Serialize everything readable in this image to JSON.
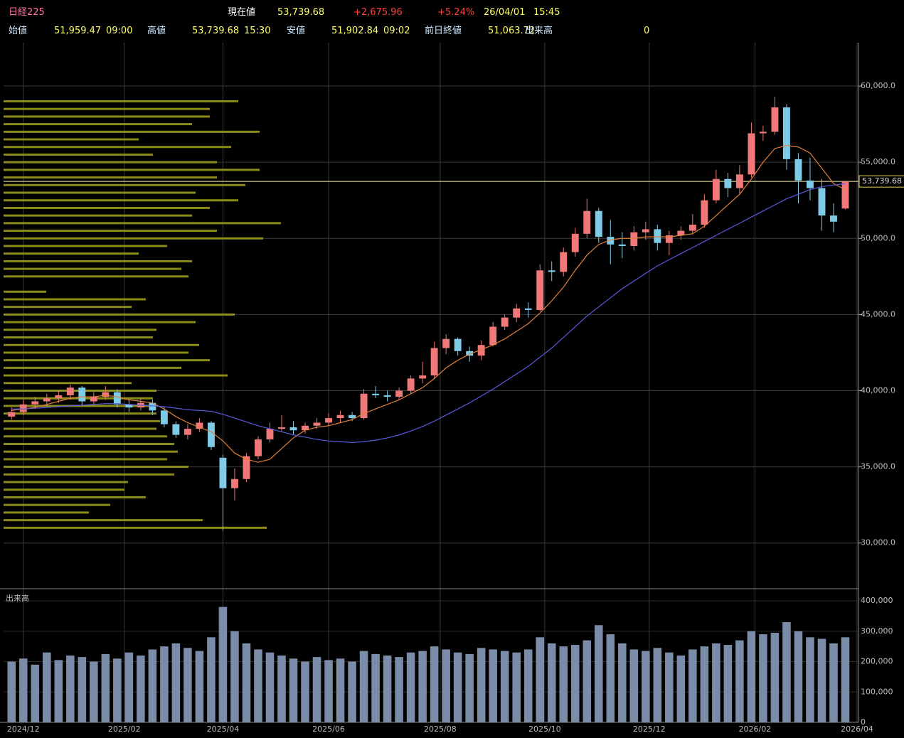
{
  "header": {
    "name": "日経225",
    "current_label": "現在値",
    "current": "53,739.68",
    "change": "+2,675.96",
    "change_pct": "+5.24%",
    "date": "26/04/01",
    "time": "15:45",
    "open_label": "始値",
    "open": "51,959.47",
    "open_time": "09:00",
    "high_label": "高値",
    "high": "53,739.68",
    "high_time": "15:30",
    "low_label": "安値",
    "low": "51,902.84",
    "low_time": "09:02",
    "prev_label": "前日終値",
    "prev": "51,063.72",
    "volume_label": "出来高",
    "volume": "0"
  },
  "chart_data": [
    {
      "type": "candlestick",
      "up_color": "#f07878",
      "down_color": "#7ecbe8",
      "grid": true,
      "xlim": [
        -0.5,
        72
      ],
      "ylim": [
        27000,
        62850
      ],
      "yticks": [
        {
          "value": 30000,
          "label": "30,000.0"
        },
        {
          "value": 35000,
          "label": "35,000.0"
        },
        {
          "value": 40000,
          "label": "40,000.0"
        },
        {
          "value": 45000,
          "label": "45,000.0"
        },
        {
          "value": 50000,
          "label": "50,000.0"
        },
        {
          "value": 55000,
          "label": "55,000.0"
        },
        {
          "value": 60000,
          "label": "60,000.0"
        }
      ],
      "last_price": 53739.68,
      "last_price_label": "53,739.68",
      "open": [
        38300,
        38600,
        39100,
        39300,
        39500,
        39700,
        40200,
        39300,
        39600,
        39900,
        39100,
        38900,
        39200,
        38700,
        37800,
        37100,
        37500,
        37900,
        35600,
        33600,
        34200,
        35700,
        36800,
        37500,
        37600,
        37400,
        37700,
        37900,
        38200,
        38400,
        38200,
        39800,
        39700,
        39600,
        40000,
        40800,
        41000,
        42800,
        43400,
        42600,
        42300,
        43000,
        44200,
        44800,
        45400,
        45300,
        47900,
        47800,
        49100,
        50300,
        51800,
        50100,
        49600,
        49500,
        50400,
        50600,
        49700,
        50200,
        50500,
        50900,
        52500,
        53900,
        53300,
        54200,
        56900,
        57000,
        58600,
        55200,
        53800,
        53300,
        51500,
        51960
      ],
      "high": [
        38900,
        39400,
        39600,
        39800,
        40000,
        40400,
        40300,
        39900,
        40300,
        40100,
        39400,
        39500,
        39400,
        38900,
        38000,
        37800,
        38200,
        38000,
        35800,
        34900,
        35900,
        37000,
        37900,
        38400,
        38000,
        37900,
        38200,
        38500,
        38700,
        38600,
        40100,
        40300,
        40000,
        40200,
        41000,
        41900,
        43200,
        43700,
        43500,
        42900,
        43300,
        44500,
        45000,
        45700,
        45800,
        48300,
        48500,
        49400,
        50700,
        52600,
        52000,
        51200,
        50400,
        50800,
        51100,
        50900,
        50500,
        50800,
        51600,
        52900,
        54500,
        54300,
        54800,
        57600,
        57400,
        59300,
        58800,
        55600,
        55300,
        53900,
        52300,
        53740
      ],
      "low": [
        38100,
        38400,
        38800,
        39000,
        39200,
        39400,
        39000,
        39100,
        39400,
        38900,
        38600,
        38700,
        38400,
        37600,
        36900,
        36800,
        37300,
        36100,
        30800,
        32800,
        34000,
        35500,
        36600,
        37300,
        37100,
        37200,
        37500,
        37700,
        37900,
        38000,
        38100,
        39500,
        39300,
        39400,
        39800,
        40500,
        40800,
        42400,
        42300,
        41900,
        42000,
        42900,
        44000,
        44500,
        44800,
        45200,
        47200,
        47500,
        48800,
        50000,
        49700,
        48300,
        48700,
        49200,
        49900,
        49200,
        48900,
        49900,
        50300,
        50700,
        52300,
        52700,
        52900,
        54000,
        56400,
        56800,
        54500,
        52300,
        52500,
        50500,
        50400,
        51900
      ],
      "close": [
        38600,
        39100,
        39300,
        39500,
        39700,
        40200,
        39300,
        39600,
        39900,
        39100,
        38900,
        39200,
        38700,
        37800,
        37100,
        37500,
        37900,
        36300,
        33600,
        34200,
        35700,
        36800,
        37500,
        37600,
        37400,
        37700,
        37900,
        38200,
        38400,
        38200,
        39800,
        39700,
        39600,
        40000,
        40800,
        41000,
        42800,
        43400,
        42600,
        42300,
        43000,
        44200,
        44800,
        45400,
        45300,
        47900,
        47800,
        49100,
        50300,
        51800,
        50100,
        49600,
        49500,
        50400,
        50600,
        49700,
        50200,
        50500,
        50900,
        52500,
        53900,
        53300,
        54200,
        56900,
        57000,
        58600,
        55200,
        53800,
        53300,
        51500,
        51100,
        53740
      ],
      "lines": [
        {
          "color": "#e0803a",
          "values": [
            38700,
            38800,
            38900,
            39100,
            39300,
            39500,
            39600,
            39600,
            39700,
            39600,
            39400,
            39300,
            39200,
            38800,
            38300,
            37900,
            37600,
            37300,
            36700,
            35900,
            35500,
            35300,
            35500,
            36200,
            36900,
            37400,
            37600,
            37700,
            37900,
            38100,
            38500,
            38800,
            39100,
            39400,
            39800,
            40200,
            40800,
            41500,
            42000,
            42400,
            42700,
            43000,
            43400,
            43900,
            44400,
            45100,
            45900,
            46800,
            47900,
            48900,
            49600,
            49900,
            50000,
            50000,
            50100,
            50100,
            50100,
            50200,
            50300,
            50800,
            51500,
            52200,
            52900,
            53900,
            55000,
            55900,
            56100,
            56000,
            55600,
            54600,
            53600,
            53200
          ]
        },
        {
          "color": "#5a5ae0",
          "values": [
            38800,
            38800,
            38850,
            38900,
            38950,
            39000,
            39050,
            39100,
            39150,
            39150,
            39100,
            39050,
            39000,
            38950,
            38850,
            38750,
            38700,
            38650,
            38450,
            38200,
            37950,
            37700,
            37500,
            37300,
            37100,
            36950,
            36800,
            36700,
            36650,
            36600,
            36650,
            36750,
            36900,
            37100,
            37350,
            37650,
            38000,
            38400,
            38800,
            39200,
            39650,
            40100,
            40600,
            41100,
            41600,
            42200,
            42800,
            43500,
            44200,
            44900,
            45500,
            46100,
            46700,
            47200,
            47700,
            48200,
            48600,
            49000,
            49400,
            49800,
            50200,
            50600,
            51000,
            51400,
            51800,
            52200,
            52600,
            52900,
            53200,
            53400,
            53500,
            53600
          ]
        }
      ],
      "volume_profile": {
        "color": "#a3a31c",
        "prices": [
          31000,
          31500,
          32000,
          32500,
          33000,
          33500,
          34000,
          34500,
          35000,
          35500,
          36000,
          36500,
          37000,
          37500,
          38000,
          38500,
          39000,
          39500,
          40000,
          40500,
          41000,
          41500,
          42000,
          42500,
          43000,
          43500,
          44000,
          44500,
          45000,
          45500,
          46000,
          46500,
          47000,
          47500,
          48000,
          48500,
          49000,
          49500,
          50000,
          50500,
          51000,
          51500,
          52000,
          52500,
          53000,
          53500,
          54000,
          54500,
          55000,
          55500,
          56000,
          56500,
          57000,
          57500,
          58000,
          58500,
          59000
        ],
        "values": [
          370,
          280,
          120,
          150,
          200,
          170,
          175,
          240,
          260,
          230,
          245,
          240,
          230,
          215,
          220,
          215,
          210,
          210,
          215,
          180,
          315,
          250,
          290,
          260,
          275,
          210,
          215,
          270,
          325,
          180,
          200,
          60,
          0,
          260,
          250,
          265,
          190,
          230,
          365,
          300,
          390,
          265,
          290,
          330,
          270,
          340,
          300,
          360,
          300,
          210,
          320,
          190,
          360,
          265,
          290,
          290,
          330
        ]
      }
    },
    {
      "type": "bar",
      "title": "出来高",
      "color": "#7a8ca8",
      "grid": true,
      "xlim": [
        -0.5,
        72
      ],
      "ylim": [
        0,
        440000
      ],
      "yticks": [
        0,
        {
          "value": 100000,
          "label": "100,000"
        },
        {
          "value": 200000,
          "label": "200,000"
        },
        {
          "value": 300000,
          "label": "300,000"
        },
        {
          "value": 400000,
          "label": "400,000"
        }
      ],
      "xticks": [
        {
          "value": 1,
          "label": "2024/12"
        },
        {
          "value": 9.6,
          "label": "2025/02"
        },
        {
          "value": 18,
          "label": "2025/04"
        },
        {
          "value": 27,
          "label": "2025/06"
        },
        {
          "value": 36.5,
          "label": "2025/08"
        },
        {
          "value": 45.4,
          "label": "2025/10"
        },
        {
          "value": 54.3,
          "label": "2025/12"
        },
        {
          "value": 63.3,
          "label": "2026/02"
        },
        {
          "value": 72,
          "label": "2026/04"
        }
      ],
      "values": [
        200000,
        210000,
        190000,
        230000,
        205000,
        220000,
        215000,
        200000,
        225000,
        210000,
        230000,
        220000,
        240000,
        250000,
        260000,
        245000,
        235000,
        280000,
        380000,
        300000,
        260000,
        240000,
        230000,
        220000,
        210000,
        200000,
        215000,
        205000,
        210000,
        200000,
        235000,
        225000,
        220000,
        215000,
        230000,
        235000,
        250000,
        240000,
        230000,
        225000,
        245000,
        240000,
        235000,
        230000,
        240000,
        280000,
        260000,
        250000,
        255000,
        270000,
        320000,
        290000,
        260000,
        240000,
        235000,
        245000,
        230000,
        220000,
        240000,
        250000,
        260000,
        255000,
        270000,
        300000,
        290000,
        295000,
        330000,
        300000,
        280000,
        275000,
        260000,
        280000
      ]
    }
  ]
}
